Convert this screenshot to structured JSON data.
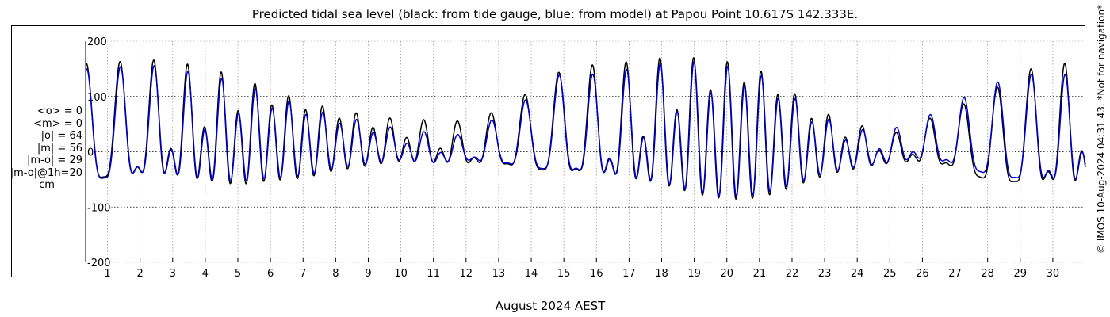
{
  "title": "Predicted tidal sea level (black: from tide gauge, blue: from model) at Papou Point 10.617S 142.333E.",
  "credit": "© IMOS 10-Aug-2024 04:31:43. *Not for navigation*",
  "stats": {
    "mean_obs": "<o> = 0",
    "mean_model": "<m> = 0",
    "abs_obs": "|o| = 64",
    "abs_model": "|m| = 56",
    "abs_diff": "|m-o| = 29",
    "abs_diff_1h": "|m-o|@1h=20",
    "unit": "cm"
  },
  "colors": {
    "observed": "#000000",
    "model": "#0000cc",
    "grid": "#999999"
  },
  "chart_data": {
    "type": "line",
    "title": "Predicted tidal sea level (black: from tide gauge, blue: from model) at Papou Point 10.617S 142.333E.",
    "xlabel": "August 2024 AEST",
    "ylabel": "",
    "xlim": [
      0.33,
      31.0
    ],
    "ylim": [
      -200,
      200
    ],
    "yticks": [
      -200,
      -100,
      0,
      100,
      200
    ],
    "xticks": [
      1,
      2,
      3,
      4,
      5,
      6,
      7,
      8,
      9,
      10,
      11,
      12,
      13,
      14,
      15,
      16,
      17,
      18,
      19,
      20,
      21,
      22,
      23,
      24,
      25,
      26,
      27,
      28,
      29,
      30
    ],
    "grid": "dotted",
    "series": [
      {
        "name": "from tide gauge",
        "color": "#000000",
        "daily_high": [
          160,
          168,
          163,
          153,
          135,
          113,
          92,
          76,
          67,
          58,
          58,
          55,
          75,
          110,
          150,
          158,
          163,
          170,
          170,
          163,
          148,
          108,
          70,
          50,
          30,
          55,
          80,
          105,
          145,
          160
        ],
        "daily_low": [
          -100,
          -105,
          -105,
          -100,
          -88,
          -65,
          -55,
          -40,
          -35,
          -30,
          -40,
          -45,
          -50,
          -65,
          -85,
          -100,
          -112,
          -110,
          -110,
          -105,
          -95,
          -75,
          -55,
          -45,
          -35,
          -40,
          -60,
          -90,
          -110,
          -120
        ]
      },
      {
        "name": "from model",
        "color": "#0000cc",
        "daily_high": [
          150,
          160,
          150,
          140,
          125,
          105,
          82,
          65,
          55,
          40,
          35,
          30,
          65,
          100,
          145,
          140,
          150,
          160,
          163,
          155,
          140,
          100,
          62,
          40,
          40,
          60,
          90,
          120,
          140,
          140
        ],
        "daily_low": [
          -100,
          -102,
          -100,
          -95,
          -80,
          -60,
          -50,
          -35,
          -30,
          -25,
          -35,
          -30,
          -45,
          -60,
          -80,
          -95,
          -105,
          -105,
          -105,
          -100,
          -88,
          -70,
          -50,
          -40,
          -35,
          -35,
          -55,
          -80,
          -100,
          -110
        ]
      }
    ]
  }
}
